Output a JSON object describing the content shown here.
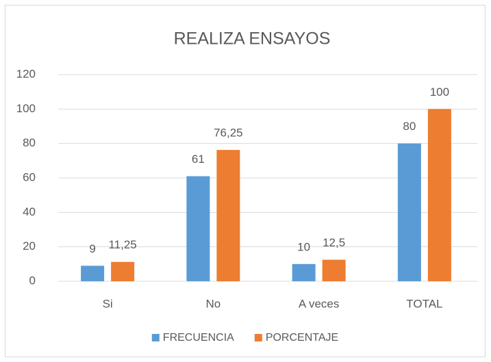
{
  "chart_data": {
    "type": "bar",
    "title": "REALIZA ENSAYOS",
    "categories": [
      "Si",
      "No",
      "A veces",
      "TOTAL"
    ],
    "series": [
      {
        "name": "FRECUENCIA",
        "color": "#5b9bd5",
        "values": [
          9,
          61,
          10,
          80
        ]
      },
      {
        "name": "PORCENTAJE",
        "color": "#ed7d31",
        "values": [
          11.25,
          76.25,
          12.5,
          100
        ],
        "value_labels": [
          "11,25",
          "76,25",
          "12,5",
          "100"
        ]
      }
    ],
    "ylim": [
      0,
      120
    ],
    "yticks": [
      0,
      20,
      40,
      60,
      80,
      100,
      120
    ],
    "grid": true,
    "legend": "bottom"
  }
}
